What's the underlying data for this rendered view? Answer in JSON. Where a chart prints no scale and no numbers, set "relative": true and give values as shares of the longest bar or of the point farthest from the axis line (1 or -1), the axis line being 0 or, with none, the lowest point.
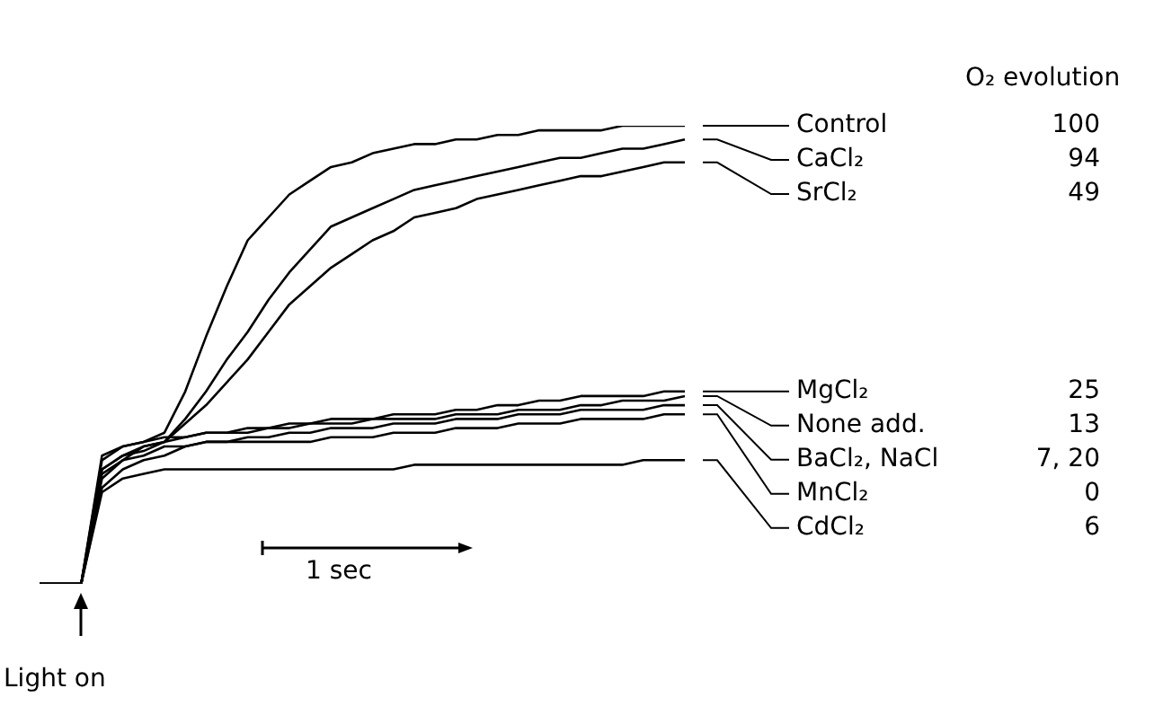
{
  "chart_data": {
    "type": "line",
    "relative": true,
    "grid": false,
    "legend": "right",
    "marker": "none",
    "line_style": "solid",
    "categories": [
      null,
      null,
      null,
      null,
      null,
      null,
      null,
      null,
      null,
      null,
      null,
      null,
      null,
      null,
      null,
      null,
      null,
      null,
      null,
      null,
      null,
      null,
      null,
      null,
      null,
      null,
      null,
      null,
      null,
      null,
      null,
      null
    ],
    "legend_title": "O₂ evolution",
    "series": [
      {
        "name": "Control",
        "color": "#000000",
        "values": [
          0,
          0,
          0,
          0.27,
          0.3,
          0.31,
          0.33,
          0.42,
          0.54,
          0.65,
          0.75,
          0.8,
          0.85,
          0.88,
          0.91,
          0.92,
          0.94,
          0.95,
          0.96,
          0.96,
          0.97,
          0.97,
          0.98,
          0.98,
          0.99,
          0.99,
          0.99,
          0.99,
          1,
          1,
          1,
          1
        ]
      },
      {
        "name": "CaCl₂",
        "color": "#000000",
        "values": [
          0,
          0,
          0,
          0.25,
          0.28,
          0.3,
          0.31,
          0.36,
          0.42,
          0.49,
          0.55,
          0.62,
          0.68,
          0.73,
          0.78,
          0.8,
          0.82,
          0.84,
          0.86,
          0.87,
          0.88,
          0.89,
          0.9,
          0.91,
          0.92,
          0.93,
          0.93,
          0.94,
          0.95,
          0.95,
          0.96,
          0.97
        ]
      },
      {
        "name": "SrCl₂",
        "color": "#000000",
        "values": [
          0,
          0,
          0,
          0.23,
          0.27,
          0.3,
          0.31,
          0.35,
          0.39,
          0.44,
          0.49,
          0.55,
          0.61,
          0.65,
          0.69,
          0.72,
          0.75,
          0.77,
          0.8,
          0.81,
          0.82,
          0.84,
          0.85,
          0.86,
          0.87,
          0.88,
          0.89,
          0.89,
          0.9,
          0.91,
          0.92,
          0.92
        ]
      },
      {
        "name": "MgCl₂",
        "color": "#000000",
        "values": [
          0,
          0,
          0,
          0.28,
          0.3,
          0.31,
          0.32,
          0.32,
          0.33,
          0.33,
          0.34,
          0.34,
          0.35,
          0.35,
          0.36,
          0.36,
          0.36,
          0.37,
          0.37,
          0.37,
          0.38,
          0.38,
          0.39,
          0.39,
          0.4,
          0.4,
          0.41,
          0.41,
          0.41,
          0.41,
          0.42,
          0.42
        ]
      },
      {
        "name": "None add.",
        "color": "#000000",
        "values": [
          0,
          0,
          0,
          0.25,
          0.28,
          0.29,
          0.31,
          0.32,
          0.33,
          0.33,
          0.33,
          0.34,
          0.34,
          0.35,
          0.35,
          0.35,
          0.36,
          0.36,
          0.36,
          0.36,
          0.37,
          0.37,
          0.37,
          0.38,
          0.38,
          0.38,
          0.39,
          0.39,
          0.4,
          0.4,
          0.4,
          0.41
        ]
      },
      {
        "name": "BaCl₂, NaCl",
        "color": "#000000",
        "values": [
          0,
          0,
          0,
          0.24,
          0.27,
          0.28,
          0.3,
          0.3,
          0.31,
          0.31,
          0.32,
          0.32,
          0.33,
          0.33,
          0.34,
          0.34,
          0.34,
          0.35,
          0.35,
          0.35,
          0.36,
          0.36,
          0.36,
          0.37,
          0.37,
          0.37,
          0.38,
          0.38,
          0.38,
          0.38,
          0.39,
          0.39
        ]
      },
      {
        "name": "MnCl₂",
        "color": "#000000",
        "values": [
          0,
          0,
          0,
          0.21,
          0.25,
          0.27,
          0.28,
          0.3,
          0.31,
          0.31,
          0.31,
          0.31,
          0.31,
          0.31,
          0.32,
          0.32,
          0.32,
          0.33,
          0.33,
          0.33,
          0.34,
          0.34,
          0.34,
          0.35,
          0.35,
          0.35,
          0.36,
          0.36,
          0.36,
          0.36,
          0.37,
          0.37
        ]
      },
      {
        "name": "CdCl₂",
        "color": "#000000",
        "values": [
          0,
          0,
          0,
          0.2,
          0.23,
          0.24,
          0.25,
          0.25,
          0.25,
          0.25,
          0.25,
          0.25,
          0.25,
          0.25,
          0.25,
          0.25,
          0.25,
          0.25,
          0.26,
          0.26,
          0.26,
          0.26,
          0.26,
          0.26,
          0.26,
          0.26,
          0.26,
          0.26,
          0.26,
          0.27,
          0.27,
          0.27
        ]
      }
    ],
    "annotations": [
      "100",
      "94",
      "49",
      "25",
      "13",
      "7, 20",
      "0",
      "6",
      "1 sec",
      "Light on"
    ]
  }
}
